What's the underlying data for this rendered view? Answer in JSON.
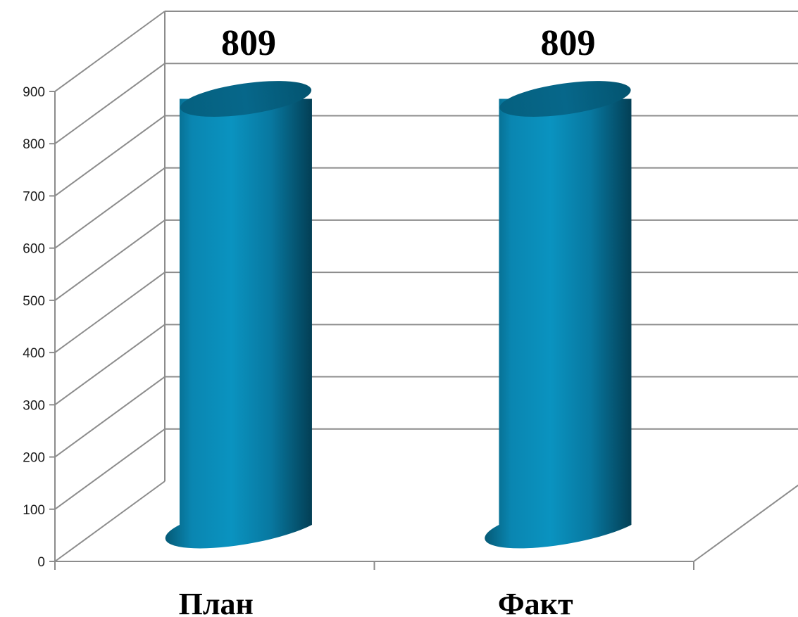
{
  "chart_data": {
    "type": "bar",
    "style": "3d-cylinder",
    "categories": [
      "План",
      "Факт"
    ],
    "values": [
      809,
      809
    ],
    "data_labels": [
      "809",
      "809"
    ],
    "title": "",
    "xlabel": "",
    "ylabel": "",
    "ylim": [
      0,
      900
    ],
    "yticks": [
      "0",
      "100",
      "200",
      "300",
      "400",
      "500",
      "600",
      "700",
      "800",
      "900"
    ],
    "grid": true,
    "legend": "none",
    "colors": {
      "bar_light": "#0892bf",
      "bar_mid": "#0a7fa6",
      "bar_dark": "#03485f",
      "bar_top": "#06617e",
      "gridline": "#8c8c8c",
      "axis": "#8c8c8c"
    }
  }
}
